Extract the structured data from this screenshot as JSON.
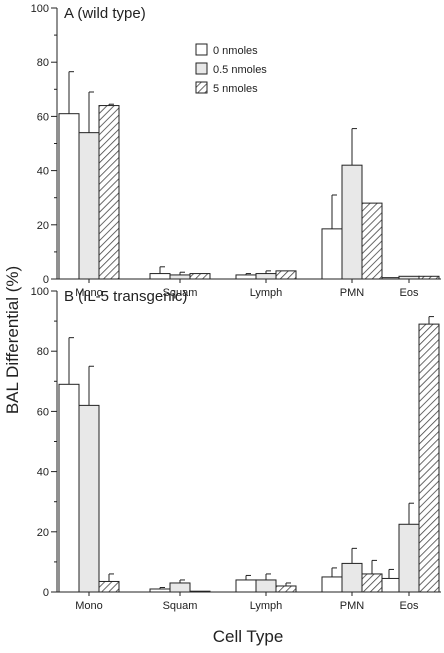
{
  "figure": {
    "ylabel": "BAL Differential (%)",
    "xlabel": "Cell Type"
  },
  "legend": {
    "placement": "top-center of panel A",
    "entries": [
      "0 nmoles",
      "0.5 nmoles",
      "5 nmoles"
    ]
  },
  "colors": {
    "series_0": "#ffffff",
    "series_1": "#e8e8e8",
    "hatch": "#444444",
    "axis": "#222222"
  },
  "chart_data": [
    {
      "type": "bar",
      "title": "A  (wild type)",
      "categories": [
        "Mono",
        "Squam",
        "Lymph",
        "PMN",
        "Eos"
      ],
      "ylim": [
        0,
        100
      ],
      "yticks": [
        0,
        20,
        40,
        60,
        80,
        100
      ],
      "series": [
        {
          "name": "0 nmoles",
          "values": [
            61,
            2,
            1.5,
            18.5,
            0.5
          ],
          "errors": [
            15.5,
            2.5,
            0.5,
            12.5,
            0
          ]
        },
        {
          "name": "0.5 nmoles",
          "values": [
            54,
            1.5,
            2,
            42,
            1
          ],
          "errors": [
            15,
            1,
            1,
            13.5,
            0
          ]
        },
        {
          "name": "5 nmoles",
          "values": [
            64,
            2,
            3,
            28,
            1
          ],
          "errors": [
            0.5,
            0,
            0,
            0,
            0
          ]
        }
      ]
    },
    {
      "type": "bar",
      "title": "B  (IL-5  transgenic)",
      "categories": [
        "Mono",
        "Squam",
        "Lymph",
        "PMN",
        "Eos"
      ],
      "ylim": [
        0,
        100
      ],
      "yticks": [
        0,
        20,
        40,
        60,
        80,
        100
      ],
      "series": [
        {
          "name": "0 nmoles",
          "values": [
            69,
            1,
            4,
            5,
            4.5
          ],
          "errors": [
            15.5,
            0.5,
            1.5,
            3,
            3
          ]
        },
        {
          "name": "0.5 nmoles",
          "values": [
            62,
            3,
            4,
            9.5,
            22.5
          ],
          "errors": [
            13,
            1,
            2,
            5,
            7
          ]
        },
        {
          "name": "5 nmoles",
          "values": [
            3.5,
            0,
            2,
            6,
            89
          ],
          "errors": [
            2.5,
            0,
            1,
            4.5,
            2.5
          ]
        }
      ]
    }
  ]
}
